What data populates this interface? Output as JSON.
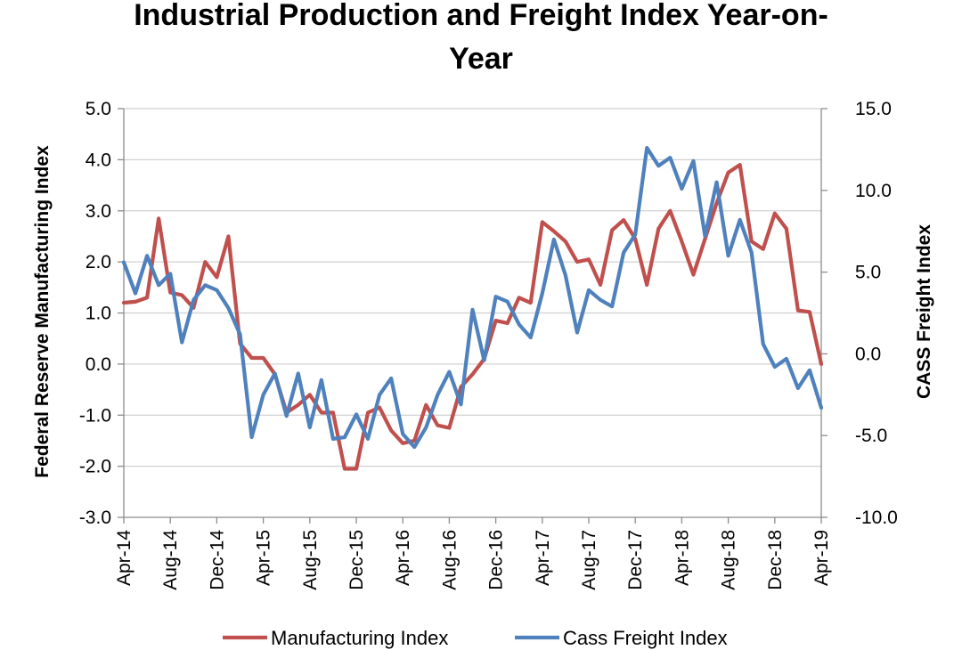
{
  "chart_data": {
    "type": "line",
    "title_line1": "Industrial Production and Freight Index Year-on-",
    "title_line2": "Year",
    "ylabel_left": "Federal Reserve Manufacturing Index",
    "ylabel_right": "CASS Freight Index",
    "ylim_left": [
      -3.0,
      5.0
    ],
    "ylim_right": [
      -10.0,
      15.0
    ],
    "yticks_left": [
      "5.0",
      "4.0",
      "3.0",
      "2.0",
      "1.0",
      "0.0",
      "-1.0",
      "-2.0",
      "-3.0"
    ],
    "yticks_right": [
      "15.0",
      "10.0",
      "5.0",
      "0.0",
      "-5.0",
      "-10.0"
    ],
    "x": [
      "Apr-14",
      "May-14",
      "Jun-14",
      "Jul-14",
      "Aug-14",
      "Sep-14",
      "Oct-14",
      "Nov-14",
      "Dec-14",
      "Jan-15",
      "Feb-15",
      "Mar-15",
      "Apr-15",
      "May-15",
      "Jun-15",
      "Jul-15",
      "Aug-15",
      "Sep-15",
      "Oct-15",
      "Nov-15",
      "Dec-15",
      "Jan-16",
      "Feb-16",
      "Mar-16",
      "Apr-16",
      "May-16",
      "Jun-16",
      "Jul-16",
      "Aug-16",
      "Sep-16",
      "Oct-16",
      "Nov-16",
      "Dec-16",
      "Jan-17",
      "Feb-17",
      "Mar-17",
      "Apr-17",
      "May-17",
      "Jun-17",
      "Jul-17",
      "Aug-17",
      "Sep-17",
      "Oct-17",
      "Nov-17",
      "Dec-17",
      "Jan-18",
      "Feb-18",
      "Mar-18",
      "Apr-18",
      "May-18",
      "Jun-18",
      "Jul-18",
      "Aug-18",
      "Sep-18",
      "Oct-18",
      "Nov-18",
      "Dec-18",
      "Jan-19",
      "Feb-19",
      "Mar-19",
      "Apr-19"
    ],
    "x_tick_labels": [
      "Apr-14",
      "Aug-14",
      "Dec-14",
      "Apr-15",
      "Aug-15",
      "Dec-15",
      "Apr-16",
      "Aug-16",
      "Dec-16",
      "Apr-17",
      "Aug-17",
      "Dec-17",
      "Apr-18",
      "Aug-18",
      "Dec-18",
      "Apr-19"
    ],
    "grid": "horizontal",
    "legend_position": "bottom",
    "series": [
      {
        "name": "Manufacturing Index",
        "axis": "left",
        "color": "#c0504d",
        "values": [
          1.2,
          1.22,
          1.3,
          2.85,
          1.4,
          1.35,
          1.1,
          2.0,
          1.7,
          2.5,
          0.4,
          0.12,
          0.12,
          -0.2,
          -0.95,
          -0.8,
          -0.6,
          -0.95,
          -0.95,
          -2.05,
          -2.05,
          -0.95,
          -0.85,
          -1.3,
          -1.55,
          -1.5,
          -0.8,
          -1.2,
          -1.25,
          -0.45,
          -0.2,
          0.1,
          0.85,
          0.8,
          1.3,
          1.2,
          2.78,
          2.6,
          2.4,
          2.0,
          2.05,
          1.55,
          2.62,
          2.82,
          2.45,
          1.55,
          2.65,
          3.0,
          2.4,
          1.75,
          2.45,
          3.15,
          3.75,
          3.9,
          2.4,
          2.25,
          2.95,
          2.65,
          1.05,
          1.02,
          0.0
        ]
      },
      {
        "name": "Cass Freight Index",
        "axis": "right",
        "color": "#4f81bd",
        "values": [
          5.6,
          3.7,
          6.0,
          4.2,
          4.9,
          0.7,
          3.3,
          4.2,
          3.9,
          2.8,
          1.2,
          -5.1,
          -2.5,
          -1.2,
          -3.8,
          -1.2,
          -4.5,
          -1.6,
          -5.2,
          -5.1,
          -3.7,
          -5.2,
          -2.5,
          -1.5,
          -4.9,
          -5.7,
          -4.5,
          -2.5,
          -1.1,
          -3.1,
          2.7,
          -0.4,
          3.5,
          3.2,
          1.8,
          1.0,
          3.7,
          7.0,
          4.8,
          1.3,
          3.9,
          3.3,
          2.9,
          6.2,
          7.3,
          12.6,
          11.5,
          12.0,
          10.1,
          11.8,
          7.2,
          10.5,
          6.0,
          8.2,
          6.2,
          0.6,
          -0.8,
          -0.3,
          -2.1,
          -1.0,
          -3.3
        ]
      }
    ]
  }
}
